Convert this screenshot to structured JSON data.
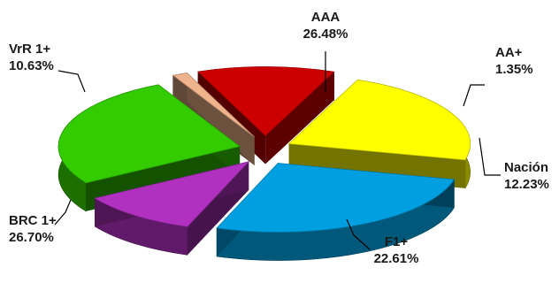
{
  "chart_data": {
    "type": "pie",
    "style": "3d-exploded",
    "title": "",
    "slices": [
      {
        "label": "AAA",
        "value": 26.48,
        "value_label": "26.48%",
        "color": "#33cc00"
      },
      {
        "label": "AA+",
        "value": 1.35,
        "value_label": "1.35%",
        "color": "#f0b48c"
      },
      {
        "label": "Nación",
        "value": 12.23,
        "value_label": "12.23%",
        "color": "#cc0000"
      },
      {
        "label": "F1+",
        "value": 22.61,
        "value_label": "22.61%",
        "color": "#ffff00"
      },
      {
        "label": "BRC 1+",
        "value": 26.7,
        "value_label": "26.70%",
        "color": "#00a0e0"
      },
      {
        "label": "VrR 1+",
        "value": 10.63,
        "value_label": "10.63%",
        "color": "#b030c0"
      }
    ]
  }
}
